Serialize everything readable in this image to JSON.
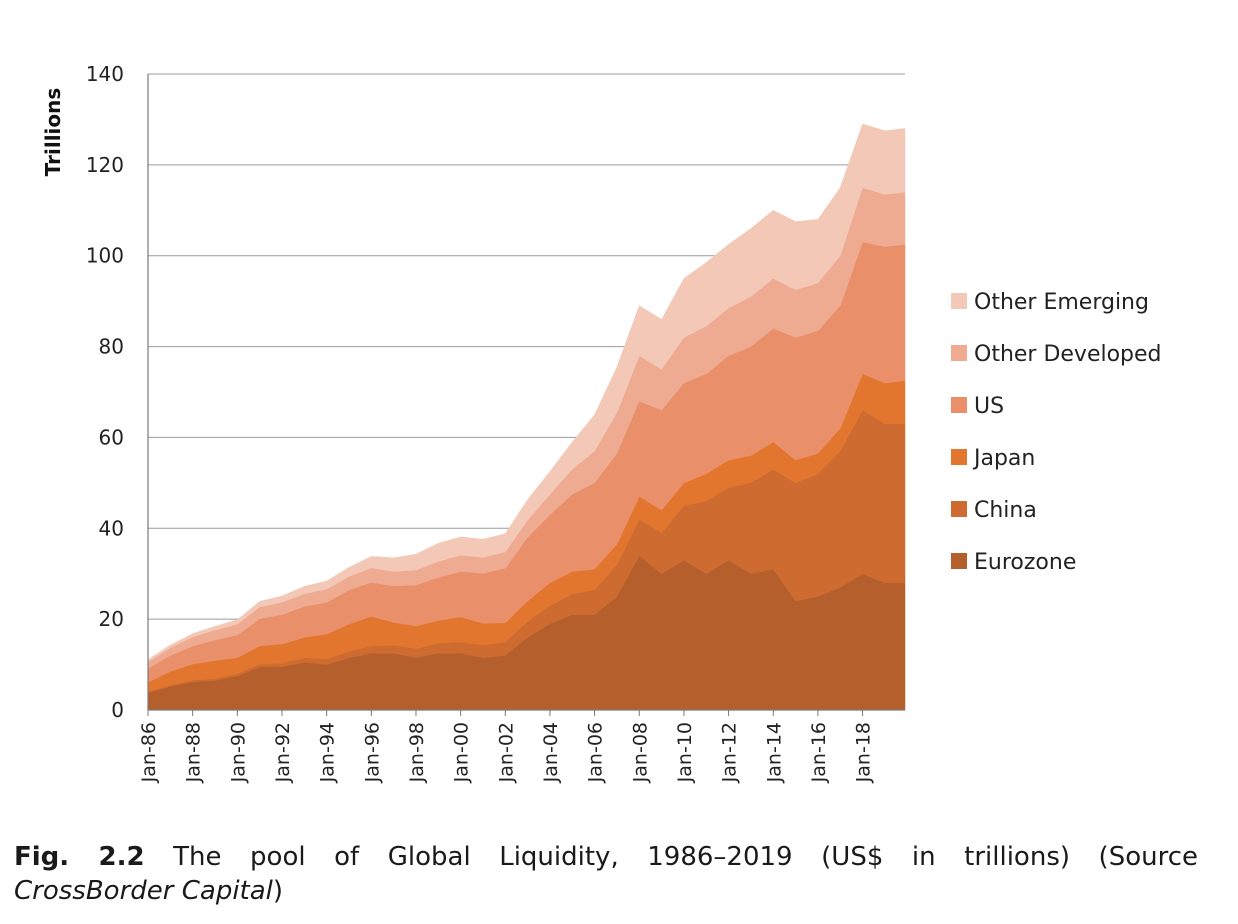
{
  "caption": {
    "fig_label": "Fig. 2.2",
    "text": "The pool of Global Liquidity, 1986–2019 (US$ in trillions) (Source",
    "source": "CrossBorder Capital",
    "close": ")"
  },
  "chart_data": {
    "type": "area",
    "stacked": true,
    "title": "",
    "ylabel": "Trillions",
    "xlabel": "",
    "ylim": [
      0,
      140
    ],
    "yticks": [
      0,
      20,
      40,
      60,
      80,
      100,
      120,
      140
    ],
    "grid": "horizontal",
    "legend_position": "right",
    "x_tick_labels": [
      "Jan-86",
      "Jan-88",
      "Jan-90",
      "Jan-92",
      "Jan-94",
      "Jan-96",
      "Jan-98",
      "Jan-00",
      "Jan-02",
      "Jan-04",
      "Jan-06",
      "Jan-08",
      "Jan-10",
      "Jan-12",
      "Jan-14",
      "Jan-16",
      "Jan-18"
    ],
    "x": [
      1986,
      1987,
      1988,
      1989,
      1990,
      1991,
      1992,
      1993,
      1994,
      1995,
      1996,
      1997,
      1998,
      1999,
      2000,
      2001,
      2002,
      2003,
      2004,
      2005,
      2006,
      2007,
      2008,
      2009,
      2010,
      2011,
      2012,
      2013,
      2014,
      2015,
      2016,
      2017,
      2018,
      2019,
      2019.9
    ],
    "series": [
      {
        "name": "Eurozone",
        "color": "#b5602c",
        "values": [
          3.8,
          5.2,
          6.2,
          6.5,
          7.5,
          9.5,
          9.5,
          10.5,
          10,
          11.5,
          12.5,
          12.5,
          11.5,
          12.5,
          12.5,
          11.5,
          12,
          16,
          19,
          21,
          21,
          25,
          34,
          30,
          33,
          30,
          33,
          30,
          31,
          24,
          25,
          27,
          30,
          28,
          28
        ]
      },
      {
        "name": "China",
        "color": "#cd6b31",
        "values": [
          0.3,
          0.3,
          0.4,
          0.4,
          0.5,
          0.6,
          0.8,
          1,
          1.2,
          1.4,
          1.6,
          1.8,
          2,
          2.2,
          2.5,
          2.8,
          3,
          3.5,
          4,
          4.5,
          5.5,
          7,
          8,
          9,
          12,
          16,
          16,
          20,
          22,
          26,
          27,
          30,
          36,
          35,
          35
        ]
      },
      {
        "name": "Japan",
        "color": "#e3762f",
        "values": [
          2,
          3,
          3.5,
          4,
          3.5,
          4,
          4.2,
          4.5,
          5.5,
          6,
          6.5,
          5,
          5,
          5,
          5.5,
          4.8,
          4.2,
          4.5,
          5,
          5,
          4.5,
          4.5,
          5,
          5,
          5,
          6,
          6,
          6,
          6,
          5,
          4.5,
          5,
          8,
          9,
          9.5
        ]
      },
      {
        "name": "US",
        "color": "#e9906a",
        "values": [
          3,
          3.5,
          4,
          4.5,
          5,
          6,
          6.5,
          6.8,
          7,
          7.5,
          7.5,
          8,
          9,
          9.5,
          10,
          11,
          12,
          14,
          15,
          17,
          19,
          20,
          21,
          22,
          22,
          22,
          23,
          24,
          25,
          27,
          27,
          27,
          29,
          30,
          30
        ]
      },
      {
        "name": "Other Developed",
        "color": "#eeab91",
        "values": [
          1.5,
          1.7,
          2,
          2.2,
          2.4,
          2.6,
          2.7,
          2.8,
          2.9,
          3,
          3.2,
          3.2,
          3.3,
          3.5,
          3.6,
          3.5,
          3.6,
          3.8,
          4.5,
          5.5,
          7,
          9,
          10,
          9,
          10,
          10.5,
          10.5,
          11,
          11,
          10.5,
          10.5,
          11,
          12,
          11.5,
          11.5
        ]
      },
      {
        "name": "Other Emerging",
        "color": "#f3c8b6",
        "values": [
          0.5,
          0.6,
          0.7,
          0.8,
          1,
          1.2,
          1.4,
          1.6,
          1.8,
          2,
          2.5,
          3,
          3.5,
          4,
          4,
          4,
          4,
          4.5,
          5,
          6,
          8,
          10,
          11,
          11,
          13,
          14,
          14,
          15,
          15,
          15,
          14,
          15,
          14,
          14,
          14
        ]
      }
    ]
  }
}
